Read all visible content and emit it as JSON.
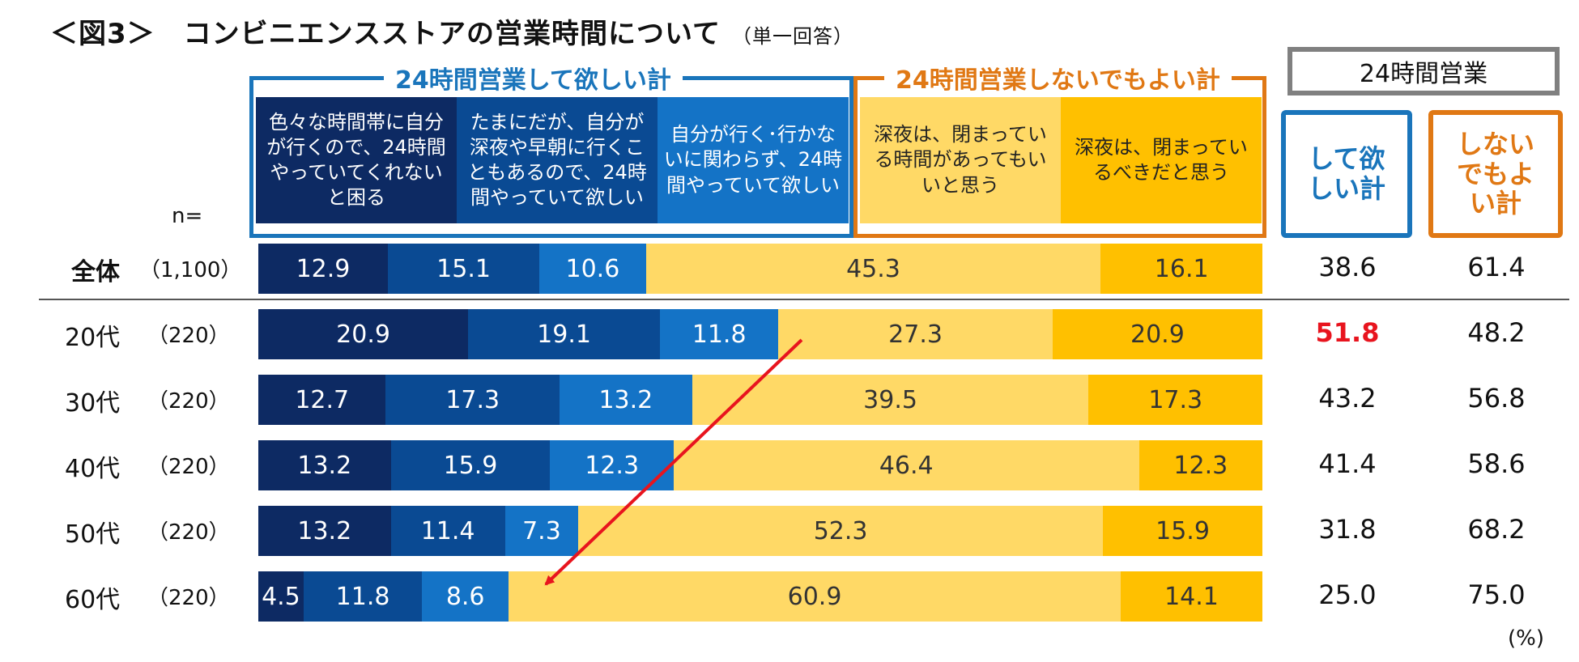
{
  "title": "＜図3＞　コンビニエンスストアの営業時間について",
  "title_sub": "（単一回答）",
  "group_want": "24時間営業して欲しい計",
  "group_notneeded": "24時間営業しないでもよい計",
  "box_24h": "24時間営業",
  "sum_want_label": "して欲しい計",
  "sum_not_label": "しないでもよい計",
  "n_label": "n=",
  "percent_unit": "(%)",
  "headers": [
    "色々な時間帯に自分が行くので、24時間やっていてくれないと困る",
    "たまにだが、自分が深夜や早朝に行くこともあるので、24時間やっていて欲しい",
    "自分が行く･行かないに関わらず、24時間やっていて欲しい",
    "深夜は、閉まっている時間があってもいいと思う",
    "深夜は、閉まっているべきだと思う"
  ],
  "colors": {
    "c1": "#0d2a63",
    "c2": "#0a4a93",
    "c3": "#1473c6",
    "c4": "#ffd966",
    "c5": "#ffc000",
    "blue": "#1a75bb",
    "orange": "#e07814",
    "gray": "#808080",
    "red": "#e8141e"
  },
  "chart_data": {
    "type": "bar",
    "orientation": "horizontal-stacked-100",
    "series_names": [
      "色々な時間帯に自分が行くので、24時間やっていてくれないと困る",
      "たまにだが、自分が深夜や早朝に行くこともあるので、24時間やっていて欲しい",
      "自分が行く･行かないに関わらず、24時間やっていて欲しい",
      "深夜は、閉まっている時間があってもいいと思う",
      "深夜は、閉まっているべきだと思う"
    ],
    "rows": [
      {
        "label": "全体",
        "n": "（1,100）",
        "values": [
          "12.9",
          "15.1",
          "10.6",
          "45.3",
          "16.1"
        ],
        "want_total": "38.6",
        "not_total": "61.4",
        "highlight": false
      },
      {
        "label": "20代",
        "n": "（220）",
        "values": [
          "20.9",
          "19.1",
          "11.8",
          "27.3",
          "20.9"
        ],
        "want_total": "51.8",
        "not_total": "48.2",
        "highlight": true
      },
      {
        "label": "30代",
        "n": "（220）",
        "values": [
          "12.7",
          "17.3",
          "13.2",
          "39.5",
          "17.3"
        ],
        "want_total": "43.2",
        "not_total": "56.8",
        "highlight": false
      },
      {
        "label": "40代",
        "n": "（220）",
        "values": [
          "13.2",
          "15.9",
          "12.3",
          "46.4",
          "12.3"
        ],
        "want_total": "41.4",
        "not_total": "58.6",
        "highlight": false
      },
      {
        "label": "50代",
        "n": "（220）",
        "values": [
          "13.2",
          "11.4",
          "7.3",
          "52.3",
          "15.9"
        ],
        "want_total": "31.8",
        "not_total": "68.2",
        "highlight": false
      },
      {
        "label": "60代",
        "n": "（220）",
        "values": [
          "4.5",
          "11.8",
          "8.6",
          "60.9",
          "14.1"
        ],
        "want_total": "25.0",
        "not_total": "75.0",
        "highlight": false
      }
    ],
    "xlim": [
      0,
      100
    ],
    "unit": "%"
  }
}
